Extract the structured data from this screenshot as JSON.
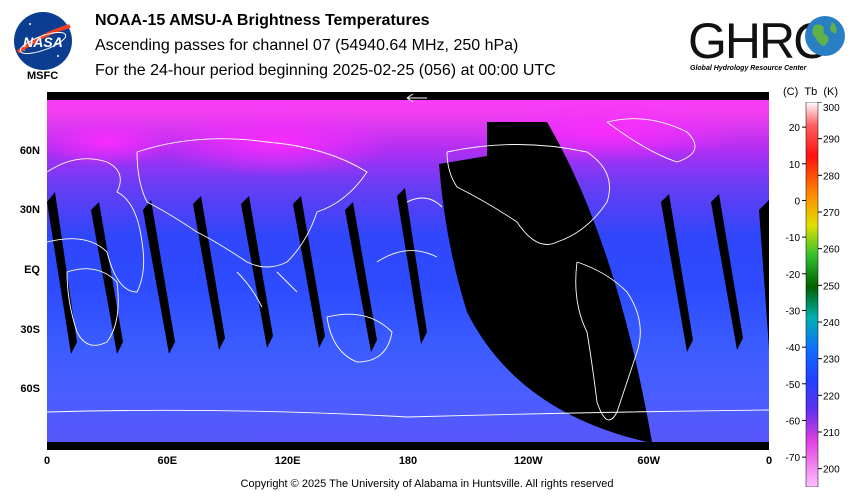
{
  "header": {
    "title": "NOAA-15 AMSU-A Brightness Temperatures",
    "subtitle": "Ascending passes for channel 07 (54940.64 MHz, 250 hPa)",
    "period": "For the 24-hour period beginning 2025-02-25 (056) at 00:00 UTC"
  },
  "logos": {
    "nasa_text": "NASA",
    "nasa_sub": "MSFC",
    "ghrc_text": "GHRC",
    "ghrc_sub": "Global Hydrology Resource Center"
  },
  "map": {
    "lon_labels": [
      "0",
      "60E",
      "120E",
      "180",
      "120W",
      "60W",
      "0"
    ],
    "lat_labels": [
      "60N",
      "30N",
      "EQ",
      "30S",
      "60S"
    ],
    "lat_values": [
      60,
      30,
      0,
      -30,
      -60
    ],
    "colors": {
      "cold_polar": "#e13fe0",
      "mid": "#5a3cf0",
      "warm_tropics": "#3a52ff",
      "land_outline": "#ffffff",
      "no_data": "#000000"
    }
  },
  "colorbar": {
    "header_c": "(C)",
    "header_tb": "Tb",
    "header_k": "(K)",
    "celsius_labels": [
      "20",
      "10",
      "0",
      "-10",
      "-20",
      "-30",
      "-40",
      "-50",
      "-60",
      "-70"
    ],
    "celsius_values": [
      20,
      10,
      0,
      -10,
      -20,
      -30,
      -40,
      -50,
      -60,
      -70
    ],
    "kelvin_labels": [
      "300",
      "290",
      "280",
      "270",
      "260",
      "250",
      "240",
      "230",
      "220",
      "210",
      "200"
    ],
    "kelvin_values": [
      300,
      290,
      280,
      270,
      260,
      250,
      240,
      230,
      220,
      210,
      200
    ],
    "range_k": [
      195,
      300
    ]
  },
  "footer": {
    "copyright": "Copyright © 2025 The University of Alabama in Huntsville.  All rights reserved"
  }
}
